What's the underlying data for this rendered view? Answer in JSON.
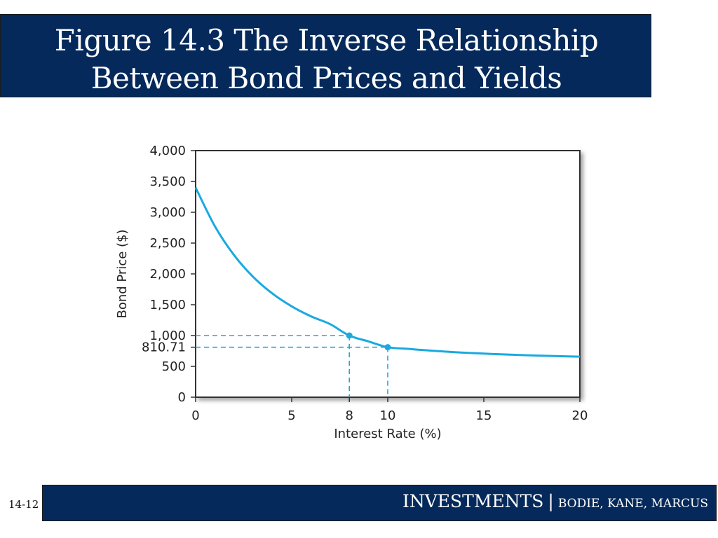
{
  "slide": {
    "title_line1": "Figure 14.3 The Inverse Relationship",
    "title_line2": "Between Bond Prices and Yields",
    "number": "14-12",
    "footer_title": "INVESTMENTS",
    "footer_separator": "|",
    "footer_authors": "BODIE, KANE, MARCUS",
    "colors": {
      "header": "#05295a",
      "curve": "#1aa9e0"
    }
  },
  "chart_data": {
    "type": "line",
    "title": "",
    "xlabel": "Interest Rate (%)",
    "ylabel": "Bond Price ($)",
    "xlim": [
      0,
      20
    ],
    "ylim": [
      0,
      4000
    ],
    "x_ticks": [
      {
        "value": 0,
        "label": "0"
      },
      {
        "value": 5,
        "label": "5"
      },
      {
        "value": 8,
        "label": "8"
      },
      {
        "value": 10,
        "label": "10"
      },
      {
        "value": 15,
        "label": "15"
      },
      {
        "value": 20,
        "label": "20"
      }
    ],
    "y_ticks": [
      {
        "value": 0,
        "label": "0"
      },
      {
        "value": 500,
        "label": "500"
      },
      {
        "value": 810.71,
        "label": "810.71"
      },
      {
        "value": 1000,
        "label": "1,000"
      },
      {
        "value": 1500,
        "label": "1,500"
      },
      {
        "value": 2000,
        "label": "2,000"
      },
      {
        "value": 2500,
        "label": "2,500"
      },
      {
        "value": 3000,
        "label": "3,000"
      },
      {
        "value": 3500,
        "label": "3,500"
      },
      {
        "value": 4000,
        "label": "4,000"
      }
    ],
    "grid": false,
    "series": [
      {
        "x": [
          0,
          1,
          2,
          3,
          4,
          5,
          6,
          7,
          8,
          9,
          10,
          11,
          12,
          13,
          14,
          15,
          16,
          17,
          18,
          19,
          20
        ],
        "y": [
          3400,
          2774,
          2304,
          1950,
          1681,
          1474,
          1312,
          1185,
          1000,
          905,
          810.71,
          785,
          761,
          740,
          722,
          707,
          694,
          683,
          673,
          665,
          658
        ]
      }
    ],
    "highlighted_points": [
      {
        "x": 8,
        "y": 1000
      },
      {
        "x": 10,
        "y": 810.71
      }
    ]
  }
}
